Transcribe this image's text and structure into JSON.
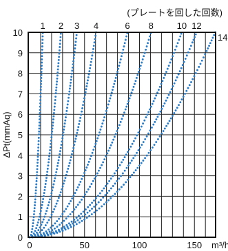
{
  "chart_data": {
    "type": "scatter",
    "title": "(プレートを回した回数)",
    "ylabel": "ΔPt(mmAq)",
    "xunit": "m³/h",
    "xlim": [
      0,
      170
    ],
    "ylim": [
      0,
      10
    ],
    "x_ticks": [
      0,
      50,
      100,
      150
    ],
    "y_ticks": [
      0,
      1,
      2,
      3,
      4,
      5,
      6,
      7,
      8,
      9,
      10
    ],
    "grid": true,
    "color": "#2a7cc7",
    "curve_model": "y = 10 * (x / x_at_10)^2",
    "series": [
      {
        "name": "1",
        "x_at_10": 12
      },
      {
        "name": "2",
        "x_at_10": 28.5
      },
      {
        "name": "3",
        "x_at_10": 43
      },
      {
        "name": "4",
        "x_at_10": 60.5
      },
      {
        "name": "6",
        "x_at_10": 89
      },
      {
        "name": "8",
        "x_at_10": 110.5
      },
      {
        "name": "10",
        "x_at_10": 138.5
      },
      {
        "name": "12",
        "x_at_10": 152
      },
      {
        "name": "14",
        "x_at_10": 169
      }
    ]
  }
}
